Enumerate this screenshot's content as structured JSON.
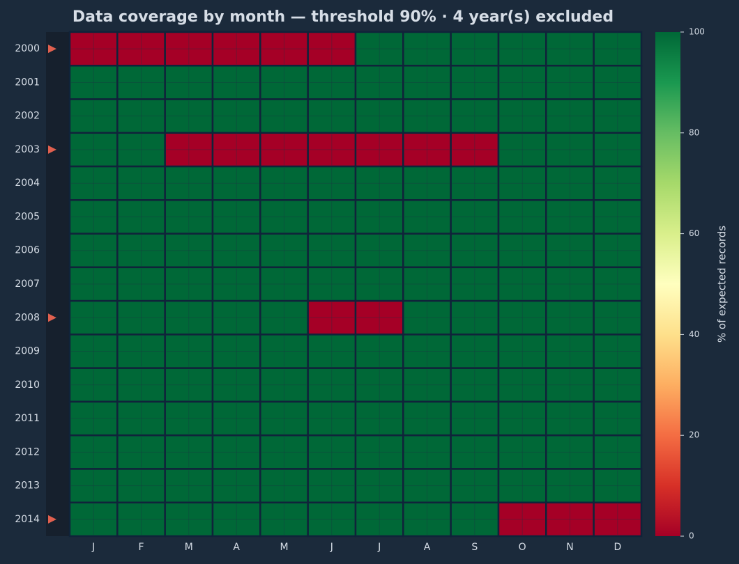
{
  "chart_data": {
    "type": "heatmap",
    "title": "Data coverage by month — threshold 90% · 4 year(s) excluded",
    "threshold": 90,
    "x_categories": [
      "J",
      "F",
      "M",
      "A",
      "M",
      "J",
      "J",
      "A",
      "S",
      "O",
      "N",
      "D"
    ],
    "y_categories": [
      "2000",
      "2001",
      "2002",
      "2003",
      "2004",
      "2005",
      "2006",
      "2007",
      "2008",
      "2009",
      "2010",
      "2011",
      "2012",
      "2013",
      "2014"
    ],
    "values": [
      [
        0,
        0,
        0,
        0,
        0,
        0,
        100,
        100,
        100,
        100,
        100,
        100
      ],
      [
        100,
        100,
        100,
        100,
        100,
        100,
        100,
        100,
        100,
        100,
        100,
        100
      ],
      [
        100,
        100,
        100,
        100,
        100,
        100,
        100,
        100,
        100,
        100,
        100,
        100
      ],
      [
        100,
        100,
        0,
        0,
        0,
        0,
        0,
        0,
        0,
        100,
        100,
        100
      ],
      [
        100,
        100,
        100,
        100,
        100,
        100,
        100,
        100,
        100,
        100,
        100,
        100
      ],
      [
        100,
        100,
        100,
        100,
        100,
        100,
        100,
        100,
        100,
        100,
        100,
        100
      ],
      [
        100,
        100,
        100,
        100,
        100,
        100,
        100,
        100,
        100,
        100,
        100,
        100
      ],
      [
        100,
        100,
        100,
        100,
        100,
        100,
        100,
        100,
        100,
        100,
        100,
        100
      ],
      [
        100,
        100,
        100,
        100,
        100,
        0,
        0,
        100,
        100,
        100,
        100,
        100
      ],
      [
        100,
        100,
        100,
        100,
        100,
        100,
        100,
        100,
        100,
        100,
        100,
        100
      ],
      [
        100,
        100,
        100,
        100,
        100,
        100,
        100,
        100,
        100,
        100,
        100,
        100
      ],
      [
        100,
        100,
        100,
        100,
        100,
        100,
        100,
        100,
        100,
        100,
        100,
        100
      ],
      [
        100,
        100,
        100,
        100,
        100,
        100,
        100,
        100,
        100,
        100,
        100,
        100
      ],
      [
        100,
        100,
        100,
        100,
        100,
        100,
        100,
        100,
        100,
        100,
        100,
        100
      ],
      [
        100,
        100,
        100,
        100,
        100,
        100,
        100,
        100,
        100,
        0,
        0,
        0
      ]
    ],
    "colormap": "RdYlGn",
    "clim": [
      0,
      100
    ],
    "colorbar_ticks": [
      0,
      20,
      40,
      60,
      80,
      100
    ],
    "colorbar_label": "% of expected records"
  }
}
